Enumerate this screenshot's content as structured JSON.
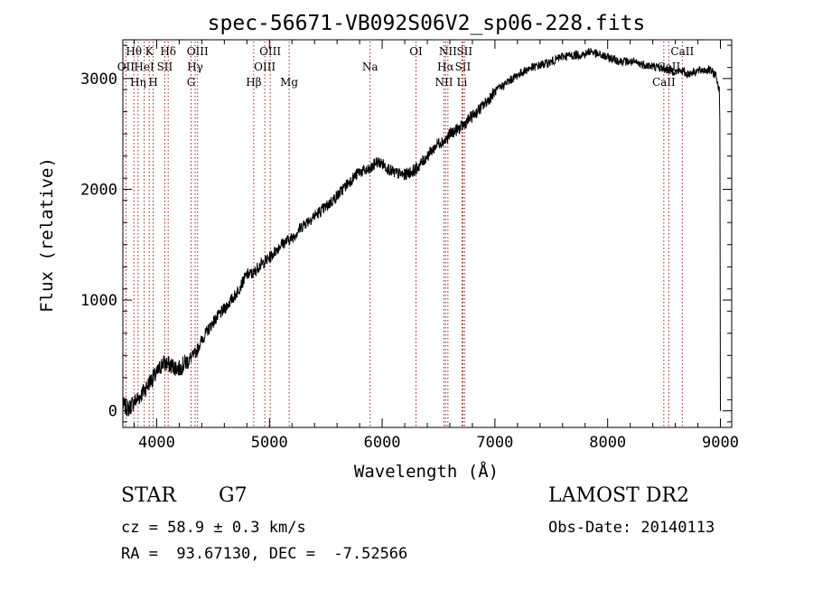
{
  "chart_data": {
    "type": "line",
    "title": "spec-56671-VB092S06V2_sp06-228.fits",
    "xlabel": "Wavelength (Å)",
    "ylabel": "Flux (relative)",
    "xlim": [
      3700,
      9100
    ],
    "ylim": [
      -150,
      3350
    ],
    "xticks": [
      4000,
      5000,
      6000,
      7000,
      8000,
      9000
    ],
    "yticks": [
      0,
      1000,
      2000,
      3000
    ],
    "grid": false,
    "series": [
      {
        "x": [
          3700,
          3750,
          3800,
          3850,
          3900,
          3950,
          4000,
          4050,
          4100,
          4150,
          4200,
          4250,
          4300,
          4350,
          4400,
          4500,
          4600,
          4700,
          4800,
          4860,
          4900,
          5000,
          5100,
          5200,
          5300,
          5400,
          5500,
          5600,
          5700,
          5800,
          5890,
          5950,
          6000,
          6100,
          6200,
          6300,
          6400,
          6500,
          6563,
          6600,
          6700,
          6800,
          6900,
          7000,
          7100,
          7200,
          7300,
          7400,
          7500,
          7600,
          7700,
          7800,
          7850,
          7900,
          8000,
          8100,
          8200,
          8300,
          8400,
          8498,
          8542,
          8600,
          8662,
          8700,
          8800,
          8900,
          8960,
          8990,
          8995,
          9000
        ],
        "y": [
          50,
          20,
          80,
          130,
          200,
          280,
          330,
          430,
          420,
          400,
          380,
          430,
          470,
          530,
          640,
          800,
          920,
          1050,
          1230,
          1240,
          1300,
          1380,
          1500,
          1560,
          1680,
          1760,
          1840,
          1940,
          2060,
          2160,
          2170,
          2250,
          2230,
          2150,
          2130,
          2180,
          2300,
          2420,
          2440,
          2500,
          2560,
          2660,
          2760,
          2880,
          2960,
          3030,
          3090,
          3120,
          3150,
          3200,
          3210,
          3220,
          3250,
          3220,
          3190,
          3160,
          3150,
          3130,
          3110,
          3090,
          3080,
          3060,
          3070,
          3040,
          3070,
          3080,
          3030,
          2900,
          2600,
          0
        ]
      }
    ],
    "lines": [
      {
        "label": "Hθ",
        "x": 3798,
        "row": 1
      },
      {
        "label": "OII",
        "x": 3727,
        "row": 2
      },
      {
        "label": "Hη",
        "x": 3835,
        "row": 3
      },
      {
        "label": "HeI",
        "x": 3889,
        "row": 2
      },
      {
        "label": "K",
        "x": 3934,
        "row": 1
      },
      {
        "label": "H",
        "x": 3969,
        "row": 3
      },
      {
        "label": "SII",
        "x": 4072,
        "row": 2
      },
      {
        "label": "Hδ",
        "x": 4102,
        "row": 1
      },
      {
        "label": "Hγ",
        "x": 4341,
        "row": 2
      },
      {
        "label": "OIII",
        "x": 4363,
        "row": 1
      },
      {
        "label": "G",
        "x": 4305,
        "row": 3
      },
      {
        "label": "Hβ",
        "x": 4861,
        "row": 3
      },
      {
        "label": "OIII",
        "x": 4959,
        "row": 2
      },
      {
        "label": "OIII",
        "x": 5007,
        "row": 1
      },
      {
        "label": "Mg",
        "x": 5175,
        "row": 3
      },
      {
        "label": "Na",
        "x": 5893,
        "row": 2
      },
      {
        "label": "OI",
        "x": 6300,
        "row": 1
      },
      {
        "label": "NII",
        "x": 6548,
        "row": 3
      },
      {
        "label": "Hα",
        "x": 6563,
        "row": 2
      },
      {
        "label": "NII",
        "x": 6583,
        "row": 1
      },
      {
        "label": "Li",
        "x": 6708,
        "row": 3
      },
      {
        "label": "SII",
        "x": 6716,
        "row": 2
      },
      {
        "label": "SII",
        "x": 6731,
        "row": 1
      },
      {
        "label": "CaII",
        "x": 8498,
        "row": 3
      },
      {
        "label": "CaII",
        "x": 8542,
        "row": 2
      },
      {
        "label": "CaII",
        "x": 8662,
        "row": 1
      }
    ]
  },
  "info": {
    "object_class": "STAR",
    "subclass": "G7",
    "redshift": "cz = 58.9 ± 0.3 km/s",
    "coords": "RA =  93.67130, DEC =  -7.52566",
    "survey": "LAMOST DR2",
    "obs_date": "Obs-Date: 20140113"
  }
}
